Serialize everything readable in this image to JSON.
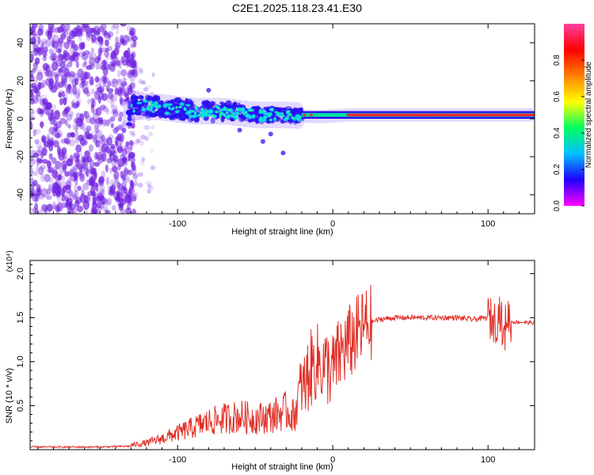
{
  "title": "C2E1.2025.118.23.41.E30",
  "colors": {
    "spectrum": [
      "#ff00ff",
      "#2000ff",
      "#00c0ff",
      "#00ff60",
      "#ffff00",
      "#ff8000",
      "#ff0000",
      "#ff40a0"
    ],
    "snr_line": "#e03028",
    "scatter": "#7020e0"
  },
  "chart_data": [
    {
      "type": "heatmap",
      "title": "C2E1.2025.118.23.41.E30",
      "xlabel": "Height of straight line (km)",
      "ylabel": "Frequency (Hz)",
      "xlim": [
        -195,
        130
      ],
      "ylim": [
        -50,
        50
      ],
      "x_ticks": [
        -100,
        0,
        100
      ],
      "y_ticks": [
        -40,
        -20,
        0,
        20,
        40
      ],
      "colorbar": {
        "label": "Normalized spectral amplitude",
        "range": [
          0,
          1
        ],
        "ticks": [
          "0.0",
          "0.2",
          "0.4",
          "0.6",
          "0.8"
        ]
      },
      "trace": {
        "x": [
          -130,
          -110,
          -90,
          -70,
          -50,
          -30,
          -10,
          10,
          30,
          60,
          90,
          110,
          130
        ],
        "y": [
          7,
          6,
          4,
          4,
          2,
          2,
          1,
          2,
          2,
          2,
          2,
          2,
          2
        ]
      }
    },
    {
      "type": "line",
      "xlabel": "Height of straight line (km)",
      "ylabel": "SNR (10 * v/v)",
      "y_multiplier": "(x10⁴)",
      "xlim": [
        -195,
        130
      ],
      "ylim": [
        0,
        2.15
      ],
      "x_ticks": [
        -100,
        0,
        100
      ],
      "y_ticks": [
        "0.5",
        "1.0",
        "1.5",
        "2.0"
      ],
      "series": [
        {
          "x": [
            -195,
            -150,
            -130,
            -120,
            -110,
            -100,
            -90,
            -80,
            -70,
            -60,
            -50,
            -40,
            -30,
            -25,
            -20,
            -15,
            -10,
            -5,
            0,
            5,
            10,
            15,
            20,
            25,
            30,
            40,
            60,
            80,
            90,
            100,
            105,
            108,
            110,
            112,
            115,
            120,
            130
          ],
          "y": [
            0.03,
            0.03,
            0.04,
            0.06,
            0.1,
            0.15,
            0.2,
            0.25,
            0.28,
            0.3,
            0.28,
            0.3,
            0.35,
            0.3,
            0.6,
            0.9,
            1.0,
            0.95,
            0.9,
            1.1,
            1.2,
            1.3,
            1.4,
            1.45,
            1.48,
            1.5,
            1.5,
            1.5,
            1.48,
            1.5,
            1.45,
            1.6,
            1.2,
            1.55,
            1.45,
            1.45,
            1.44
          ]
        }
      ]
    }
  ]
}
